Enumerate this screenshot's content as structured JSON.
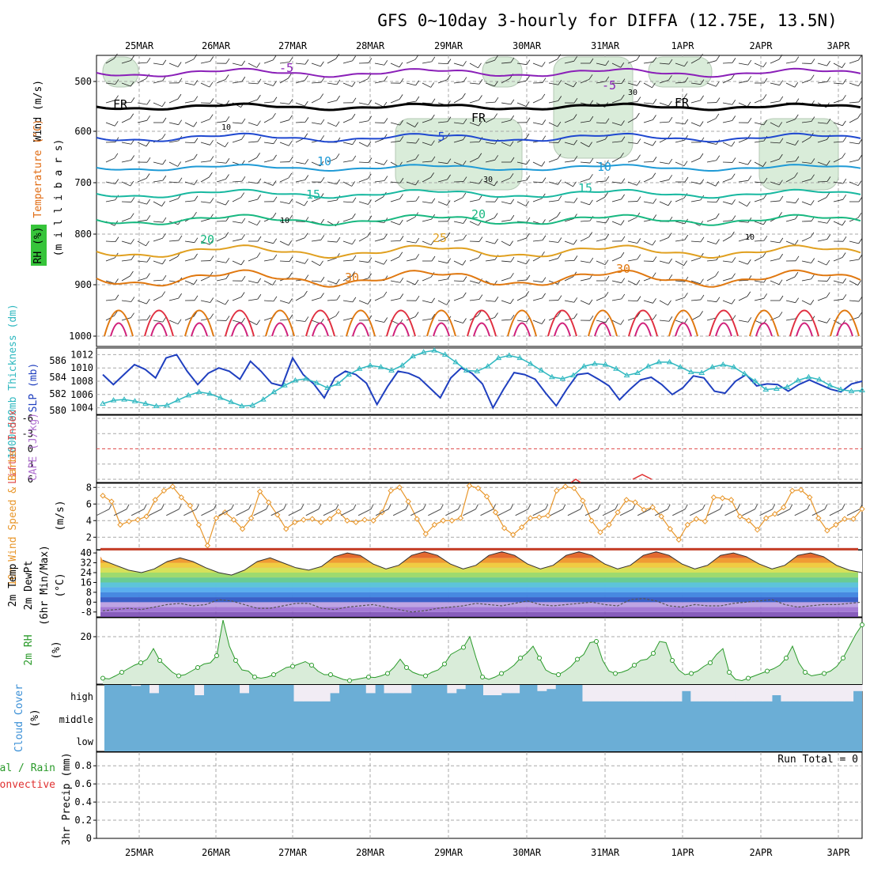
{
  "title": "GFS 0~10day 3-hourly for DIFFA (12.75E, 13.5N)",
  "dates": [
    "25MAR",
    "26MAR",
    "27MAR",
    "28MAR",
    "29MAR",
    "30MAR",
    "31MAR",
    "1APR",
    "2APR",
    "3APR"
  ],
  "colors": {
    "frame": "#000000",
    "grid": "#a8a8a8",
    "slp": "#1f3fbf",
    "thickness": "#2fb8c0",
    "wind_speed": "#e8962a",
    "barb": "#555555",
    "rh_fill": "#d9ecd9",
    "rh_line": "#2a9a2a",
    "cloud": "#6baed6",
    "cloud_bg": "#f1ecf4",
    "lifted_zero": "#e05050",
    "cape": "#e03030"
  },
  "panels": {
    "upper_air": {
      "ylabels": [
        {
          "text": "Wind (m/s)",
          "color": "#000000"
        },
        {
          "text": "Temperature (°C)",
          "color": "#e06a10"
        },
        {
          "text": "RH (%)",
          "color": "#000000"
        }
      ],
      "yunits": "(m i l l i b a r s)",
      "pressure_ticks": [
        "500",
        "600",
        "700",
        "800",
        "900",
        "1000"
      ],
      "contour_labels": [
        {
          "text": "-5",
          "color": "#8a1fb8"
        },
        {
          "text": "-5",
          "color": "#8a1fb8"
        },
        {
          "text": "FR",
          "color": "#000000"
        },
        {
          "text": "FR",
          "color": "#000000"
        },
        {
          "text": "FR",
          "color": "#000000"
        },
        {
          "text": "5",
          "color": "#1f48d0"
        },
        {
          "text": "10",
          "color": "#1e9ad6"
        },
        {
          "text": "10",
          "color": "#1e9ad6"
        },
        {
          "text": "15",
          "color": "#18b8a0"
        },
        {
          "text": "15",
          "color": "#18b8a0"
        },
        {
          "text": "20",
          "color": "#18b880"
        },
        {
          "text": "20",
          "color": "#18b880"
        },
        {
          "text": "25",
          "color": "#e0a020"
        },
        {
          "text": "30",
          "color": "#e07810"
        },
        {
          "text": "30",
          "color": "#e07810"
        },
        {
          "text": "10",
          "color": "#999999"
        },
        {
          "text": "10",
          "color": "#999999"
        },
        {
          "text": "10",
          "color": "#999999"
        },
        {
          "text": "30",
          "color": "#999999"
        },
        {
          "text": "30",
          "color": "#999999"
        }
      ]
    },
    "slp_thickness": {
      "ylabel_thickness": "1000~500mb Thickness (dm)",
      "ylabel_slp": "SLP (mb)",
      "thickness_ticks": [
        "586",
        "584",
        "582",
        "580"
      ],
      "slp_ticks": [
        "1012",
        "1010",
        "1008",
        "1006",
        "1004"
      ]
    },
    "stability": {
      "ylabel_li": "Lifted Index",
      "ylabel_cape": "CAPE (J/kg)",
      "ticks": [
        "-6",
        "-3",
        "0",
        "3",
        "6"
      ]
    },
    "wind10m": {
      "ylabel": "10m Wind Speed & Barbs",
      "units": "(m/s)",
      "ticks": [
        "8",
        "6",
        "4",
        "2"
      ]
    },
    "temperature": {
      "ylabel1": "2m Temp",
      "ylabel2": "2m DewPt",
      "ylabel3": "(6hr Min/Max)",
      "units": "(°C)",
      "ticks": [
        "40",
        "32",
        "24",
        "16",
        "8",
        "0",
        "-8"
      ]
    },
    "rh2m": {
      "ylabel": "2m RH",
      "units": "(%)",
      "ticks": [
        "20"
      ]
    },
    "cloud": {
      "ylabel": "Cloud Cover",
      "units": "(%)",
      "levels": [
        "high",
        "middle",
        "low"
      ]
    },
    "precip": {
      "ylabel1": "Total / Rain",
      "ylabel2": "Convective",
      "ylabel3": "3hr Precip (mm)",
      "ticks": [
        "0.8",
        "0.6",
        "0.4",
        "0.2",
        "0"
      ],
      "run_total": "Run Total = 0"
    }
  },
  "chart_data": [
    {
      "type": "line",
      "panel": "slp_thickness",
      "title": "",
      "ylabel": "SLP (mb)",
      "ylim": [
        1003,
        1013
      ],
      "series": [
        {
          "name": "SLP",
          "values": [
            1009,
            1007.5,
            1009,
            1010.5,
            1009.8,
            1008.5,
            1011.5,
            1012,
            1009.5,
            1007.5,
            1009.2,
            1010,
            1009.5,
            1008.3,
            1011,
            1009.5,
            1007.7,
            1007.3,
            1011.5,
            1009,
            1007.6,
            1005.5,
            1008.5,
            1009.5,
            1009,
            1007.7,
            1004.5,
            1007.2,
            1009.5,
            1009.2,
            1008.5,
            1007,
            1005.5,
            1008.5,
            1010,
            1009.2,
            1007.6,
            1004,
            1006.8,
            1009.3,
            1009,
            1008.3,
            1006.2,
            1004.3,
            1006.8,
            1009,
            1009.2,
            1008.3,
            1007.3,
            1005.2,
            1006.8,
            1008.2,
            1008.6,
            1007.5,
            1006,
            1007,
            1008.8,
            1008.5,
            1006.5,
            1006.2,
            1008,
            1009,
            1007.3,
            1007.6,
            1007.5,
            1006.5,
            1007.5,
            1008.2,
            1007.5,
            1006.8,
            1006.4,
            1007.6,
            1008
          ]
        }
      ]
    },
    {
      "type": "line",
      "panel": "slp_thickness",
      "ylabel": "1000~500mb Thickness (dm)",
      "ylim": [
        579.5,
        587.5
      ],
      "series": [
        {
          "name": "Thickness",
          "values": [
            580.8,
            581.2,
            581.3,
            581.1,
            580.8,
            580.5,
            580.6,
            581.2,
            581.8,
            582.2,
            582,
            581.5,
            581,
            580.5,
            580.6,
            581.3,
            582.2,
            583,
            583.6,
            583.8,
            583.3,
            582.7,
            583.2,
            584.3,
            585,
            585.4,
            585.2,
            584.8,
            585.4,
            586.5,
            587,
            587.2,
            586.7,
            585.8,
            584.8,
            584.7,
            585.3,
            586.3,
            586.6,
            586.3,
            585.6,
            584.8,
            584,
            583.8,
            584.2,
            585.3,
            585.6,
            585.5,
            585,
            584.2,
            584.5,
            585.3,
            585.8,
            585.8,
            585.2,
            584.6,
            584.5,
            585.2,
            585.5,
            585.2,
            584.4,
            583.5,
            582.5,
            582.6,
            582.8,
            583.6,
            584,
            583.7,
            583,
            582.5,
            582.3,
            582.4
          ]
        }
      ]
    },
    {
      "type": "line",
      "panel": "wind10m",
      "ylabel": "(m/s)",
      "ylim": [
        0.5,
        8.5
      ],
      "series": [
        {
          "name": "10m Wind Speed",
          "values": [
            7,
            6.3,
            3.5,
            3.9,
            4.1,
            4.5,
            6.5,
            7.6,
            8.1,
            6.8,
            5.8,
            3.5,
            1,
            4.3,
            5,
            4.1,
            3,
            4.3,
            7.5,
            6.2,
            4.7,
            3,
            3.8,
            4.1,
            4.2,
            3.8,
            4.2,
            5.1,
            4,
            3.8,
            4.1,
            4,
            5,
            7.6,
            8,
            6.3,
            4.2,
            2.4,
            3.5,
            4,
            4,
            4.3,
            8.2,
            7.9,
            6.9,
            5,
            3.1,
            2.3,
            3.2,
            4.3,
            4.4,
            4.6,
            7.6,
            8.1,
            7.9,
            6.4,
            4,
            2.6,
            3.5,
            5,
            6.5,
            6.2,
            5.3,
            5.6,
            4.5,
            3,
            1.7,
            3.5,
            4.2,
            3.9,
            6.8,
            6.7,
            6.5,
            4.5,
            4,
            2.9,
            4.3,
            4.8,
            5.6,
            7.6,
            7.7,
            6.8,
            4.3,
            2.8,
            3.5,
            4.2,
            4.2,
            5.4
          ]
        }
      ]
    },
    {
      "type": "area",
      "panel": "temperature",
      "ylabel": "(°C)",
      "ylim": [
        -12,
        42
      ],
      "series": [
        {
          "name": "2m Temp",
          "values": [
            34,
            30,
            26,
            24,
            27,
            33,
            36,
            33,
            28,
            24,
            22,
            26,
            33,
            36,
            32,
            28,
            26,
            29,
            37,
            40,
            38,
            31,
            27,
            30,
            38,
            41,
            38,
            31,
            27,
            30,
            38,
            41,
            38,
            31,
            27,
            30,
            38,
            41,
            38,
            31,
            27,
            30,
            38,
            41,
            38,
            31,
            27,
            30,
            38,
            40,
            37,
            31,
            27,
            30,
            38,
            40,
            37,
            30,
            26,
            24
          ]
        },
        {
          "name": "2m DewPt",
          "values": [
            -7,
            -6,
            -5,
            -6,
            -4,
            -2,
            -1,
            -3,
            -2,
            2,
            1,
            -2,
            -5,
            -5,
            -3,
            -1,
            -1,
            -5,
            -6,
            -4,
            -3,
            -2,
            -4,
            -6,
            -8,
            -7,
            -5,
            -4,
            -3,
            -1,
            -2,
            -3,
            -1,
            1,
            -2,
            -3,
            -2,
            -1,
            0,
            -2,
            -3,
            2,
            3,
            1,
            -3,
            -4,
            -2,
            -3,
            -3,
            -1,
            0,
            1,
            2,
            -2,
            -4,
            -3,
            -2,
            -2,
            -1,
            0
          ]
        }
      ]
    },
    {
      "type": "area",
      "panel": "rh2m",
      "ylabel": "(%)",
      "ylim": [
        0,
        28
      ],
      "series": [
        {
          "name": "2m RH",
          "values": [
            2.5,
            2.2,
            3.5,
            5,
            6.5,
            8,
            9,
            10.5,
            15,
            10,
            7.5,
            5,
            3.5,
            4,
            5.5,
            7,
            8.5,
            9,
            12,
            27,
            16,
            10,
            6,
            5.5,
            3,
            2.5,
            3,
            4,
            5.5,
            7,
            7.5,
            8.5,
            9.5,
            8,
            5.5,
            4,
            4,
            3,
            2,
            1.5,
            2,
            2.5,
            3,
            2.8,
            3.5,
            4.5,
            7,
            10.5,
            7,
            5,
            4,
            3.5,
            5,
            6,
            8.5,
            12.5,
            14,
            15.5,
            20,
            11,
            3,
            2,
            3,
            4.5,
            6,
            8,
            11,
            13,
            16,
            11,
            6,
            4.5,
            4,
            5.5,
            7.5,
            10.5,
            12.5,
            17.5,
            18,
            10,
            5.5,
            4.5,
            5,
            6,
            8,
            10,
            10.5,
            13,
            18,
            17.5,
            10,
            6,
            4,
            4.5,
            5.5,
            7.5,
            9,
            12.5,
            15,
            5,
            2,
            1.5,
            2.5,
            3.5,
            4.5,
            5.5,
            6.5,
            8,
            11,
            16,
            9,
            5,
            3.5,
            4,
            4.5,
            5.5,
            7.5,
            11,
            16,
            21,
            25
          ]
        }
      ]
    },
    {
      "type": "bar",
      "panel": "cloud",
      "ylabel": "(%)",
      "note": "high cloud fraction per 3-hourly step (0-100)",
      "series": [
        {
          "name": "high",
          "values": [
            100,
            100,
            100,
            95,
            100,
            60,
            100,
            100,
            100,
            100,
            50,
            100,
            100,
            100,
            100,
            60,
            100,
            100,
            100,
            100,
            100,
            20,
            20,
            20,
            20,
            60,
            100,
            100,
            100,
            60,
            100,
            60,
            60,
            60,
            100,
            100,
            100,
            100,
            60,
            80,
            100,
            100,
            50,
            50,
            60,
            60,
            100,
            100,
            70,
            80,
            100,
            100,
            100,
            20,
            20,
            20,
            20,
            20,
            20,
            20,
            20,
            20,
            20,
            20,
            70,
            20,
            20,
            20,
            20,
            20,
            20,
            20,
            20,
            20,
            50,
            20,
            20,
            20,
            20,
            20,
            20,
            20,
            20,
            70
          ]
        },
        {
          "name": "middle",
          "values": [
            100,
            100,
            100,
            100,
            100,
            100,
            100,
            100,
            100,
            100,
            100,
            100,
            100,
            100,
            100,
            100,
            100,
            100,
            100,
            100,
            100,
            100,
            100,
            100,
            100,
            100,
            100,
            100,
            100,
            100,
            100,
            100,
            100,
            100,
            100,
            100,
            100,
            100,
            100,
            100,
            100,
            100,
            100,
            100,
            100,
            100,
            100,
            100,
            100,
            100,
            100,
            100,
            100,
            100,
            100,
            100,
            100,
            100,
            100,
            100,
            100,
            100,
            100,
            100,
            100,
            100,
            100,
            100,
            100,
            100,
            100,
            100,
            100,
            100,
            100,
            100,
            100,
            100,
            100,
            100,
            100,
            100,
            100,
            100
          ]
        },
        {
          "name": "low",
          "values": [
            100,
            100,
            100,
            100,
            100,
            100,
            100,
            100,
            100,
            100,
            100,
            100,
            100,
            100,
            100,
            100,
            100,
            100,
            100,
            100,
            100,
            100,
            100,
            100,
            100,
            100,
            100,
            100,
            100,
            100,
            100,
            100,
            100,
            100,
            100,
            100,
            100,
            100,
            100,
            100,
            100,
            100,
            100,
            100,
            100,
            100,
            100,
            100,
            100,
            100,
            100,
            100,
            100,
            100,
            100,
            100,
            100,
            100,
            100,
            100,
            100,
            100,
            100,
            100,
            100,
            100,
            100,
            100,
            100,
            100,
            100,
            100,
            100,
            100,
            100,
            100,
            100,
            100,
            100,
            100,
            100,
            100,
            100,
            100
          ]
        }
      ]
    },
    {
      "type": "bar",
      "panel": "precip",
      "ylabel": "3hr Precip (mm)",
      "ylim": [
        0,
        0.95
      ],
      "series": [
        {
          "name": "Total / Rain",
          "values": []
        }
      ]
    }
  ]
}
